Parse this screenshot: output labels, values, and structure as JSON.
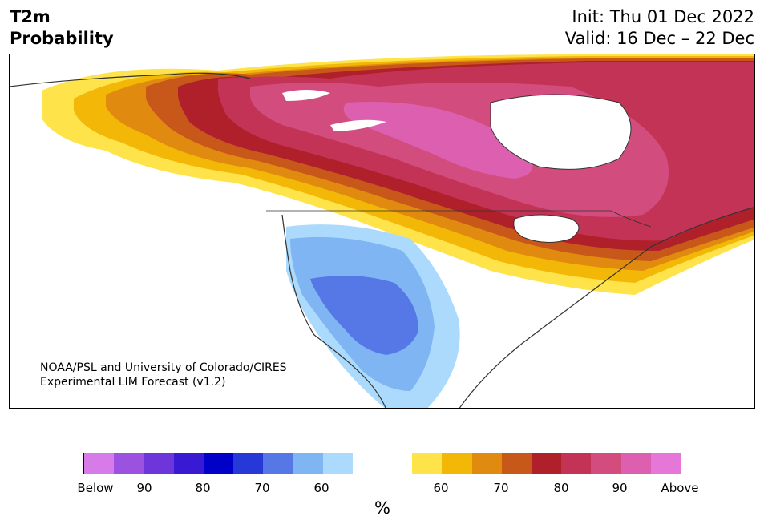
{
  "header": {
    "title_line1": "T2m",
    "title_line2": "Probability",
    "init": "Init: Thu 01 Dec 2022",
    "valid": "Valid: 16 Dec – 22 Dec"
  },
  "map": {
    "region": "North America",
    "credit_line1": "NOAA/PSL and University of Colorado/CIRES",
    "credit_line2": "Experimental LIM Forecast (v1.2)"
  },
  "colorbar": {
    "colors": [
      "#d77be8",
      "#9c52e0",
      "#6e36da",
      "#3919d4",
      "#0000c8",
      "#2638d8",
      "#5677e6",
      "#7fb5f3",
      "#acdafc",
      "#ffffff",
      "#ffffff",
      "#fee34a",
      "#f3b707",
      "#e08b0f",
      "#c8581a",
      "#b0202a",
      "#c23356",
      "#d34c7e",
      "#dc5fb0",
      "#e676d8"
    ],
    "ticks": [
      "Below",
      "90",
      "80",
      "70",
      "60",
      "60",
      "70",
      "80",
      "90",
      "Above"
    ],
    "unit": "%"
  },
  "colors": {
    "land_outline": "#333333",
    "lake": "#ffffff"
  }
}
